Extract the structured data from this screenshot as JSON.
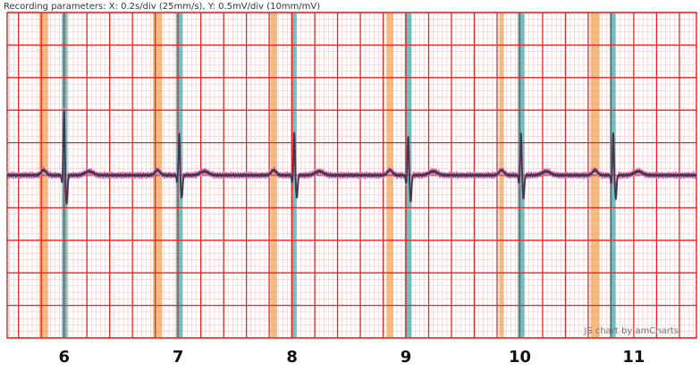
{
  "header": {
    "recording_parameters": "Recording parameters: X: 0.2s/div (25mm/s), Y: 0.5mV/div (10mm/mV)"
  },
  "credit": "JS chart by amCharts",
  "chart_data": {
    "type": "line",
    "title": "",
    "xlabel": "",
    "ylabel": "",
    "x_unit": "s",
    "x_scale": "0.2s/div (25mm/s)",
    "y_scale": "0.5mV/div (10mm/mV)",
    "xlim": [
      5.5,
      11.55
    ],
    "ylim": [
      -2.5,
      2.5
    ],
    "x_ticks": [
      6,
      7,
      8,
      9,
      10,
      11
    ],
    "tick_labels": [
      "6",
      "7",
      "8",
      "9",
      "10",
      "11"
    ],
    "grid": true,
    "beats": [
      {
        "r_time": 6.0,
        "p_time": 5.82,
        "p_band": [
          5.78,
          5.86
        ],
        "qrs_band": [
          5.98,
          6.03
        ],
        "r_mv": 1.0,
        "s_mv": -0.45
      },
      {
        "r_time": 7.01,
        "p_time": 6.82,
        "p_band": [
          6.78,
          6.86
        ],
        "qrs_band": [
          6.98,
          7.04
        ],
        "r_mv": 0.65,
        "s_mv": -0.35
      },
      {
        "r_time": 8.02,
        "p_time": 7.84,
        "p_band": [
          7.81,
          7.87
        ],
        "qrs_band": [
          7.99,
          8.04
        ],
        "r_mv": 0.65,
        "s_mv": -0.35
      },
      {
        "r_time": 9.02,
        "p_time": 8.86,
        "p_band": [
          8.83,
          8.89
        ],
        "qrs_band": [
          8.99,
          9.05
        ],
        "r_mv": 0.6,
        "s_mv": -0.4
      },
      {
        "r_time": 10.01,
        "p_time": 9.84,
        "p_band": [
          9.82,
          9.86
        ],
        "qrs_band": [
          9.98,
          10.04
        ],
        "r_mv": 0.65,
        "s_mv": -0.35
      },
      {
        "r_time": 10.82,
        "p_time": 10.66,
        "p_band": [
          10.62,
          10.7
        ],
        "qrs_band": [
          10.79,
          10.84
        ],
        "r_mv": 0.65,
        "s_mv": -0.35
      }
    ],
    "series": [
      {
        "color": "#3a3a4a"
      },
      {
        "color": "#e86fb6"
      }
    ],
    "colors": {
      "major_grid": "#ee2222",
      "minor_grid": "#f9c4c4",
      "p_band": "#f2a65a",
      "qrs_band": "#4bb3b3",
      "background": "#ffffff"
    }
  }
}
